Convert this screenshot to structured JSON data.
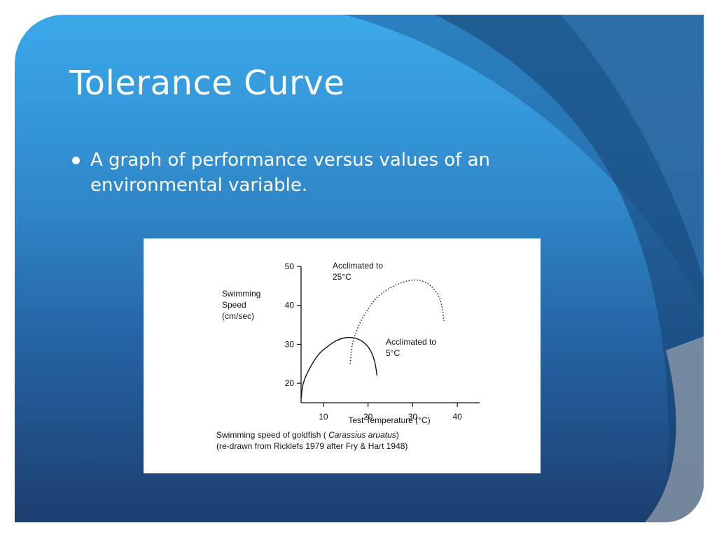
{
  "slide": {
    "title": "Tolerance Curve",
    "bullets": [
      "A graph of performance versus values of an environmental variable."
    ],
    "colors": {
      "background_top": "#3aa9ea",
      "background_bottom": "#1c3e6f",
      "text": "#ffffff"
    }
  },
  "chart_data": {
    "type": "line",
    "title": "",
    "ylabel_lines": [
      "Swimming",
      "Speed",
      "(cm/sec)"
    ],
    "xlabel": "Test Temperature (°C)",
    "xlim": [
      5,
      45
    ],
    "ylim": [
      15,
      50
    ],
    "xticks": [
      10,
      20,
      30,
      40
    ],
    "yticks": [
      20,
      30,
      40,
      50
    ],
    "series": [
      {
        "label_lines": [
          "Acclimated to",
          "5°C"
        ],
        "style": "solid",
        "points": [
          [
            5,
            16
          ],
          [
            5.5,
            20
          ],
          [
            7,
            24
          ],
          [
            9,
            27.5
          ],
          [
            11,
            29.5
          ],
          [
            13,
            31
          ],
          [
            15,
            31.7
          ],
          [
            17,
            31.6
          ],
          [
            19,
            30.5
          ],
          [
            20.5,
            28.5
          ],
          [
            21.5,
            25.5
          ],
          [
            22,
            22
          ]
        ]
      },
      {
        "label_lines": [
          "Acclimated to",
          "25°C"
        ],
        "style": "dotted",
        "points": [
          [
            16,
            25
          ],
          [
            16.5,
            30
          ],
          [
            18,
            35
          ],
          [
            20,
            39
          ],
          [
            22,
            42
          ],
          [
            25,
            44.5
          ],
          [
            28,
            46
          ],
          [
            31,
            46.5
          ],
          [
            33.5,
            45.5
          ],
          [
            35.5,
            43
          ],
          [
            36.5,
            40
          ],
          [
            37,
            36
          ]
        ]
      }
    ],
    "caption_lines": [
      {
        "before": "Swimming speed of goldfish ( ",
        "italic": "Carassius aruatus",
        "after": ")"
      },
      {
        "before": "(re-drawn from Ricklefs 1979 after Fry & Hart 1948)",
        "italic": "",
        "after": ""
      }
    ]
  }
}
